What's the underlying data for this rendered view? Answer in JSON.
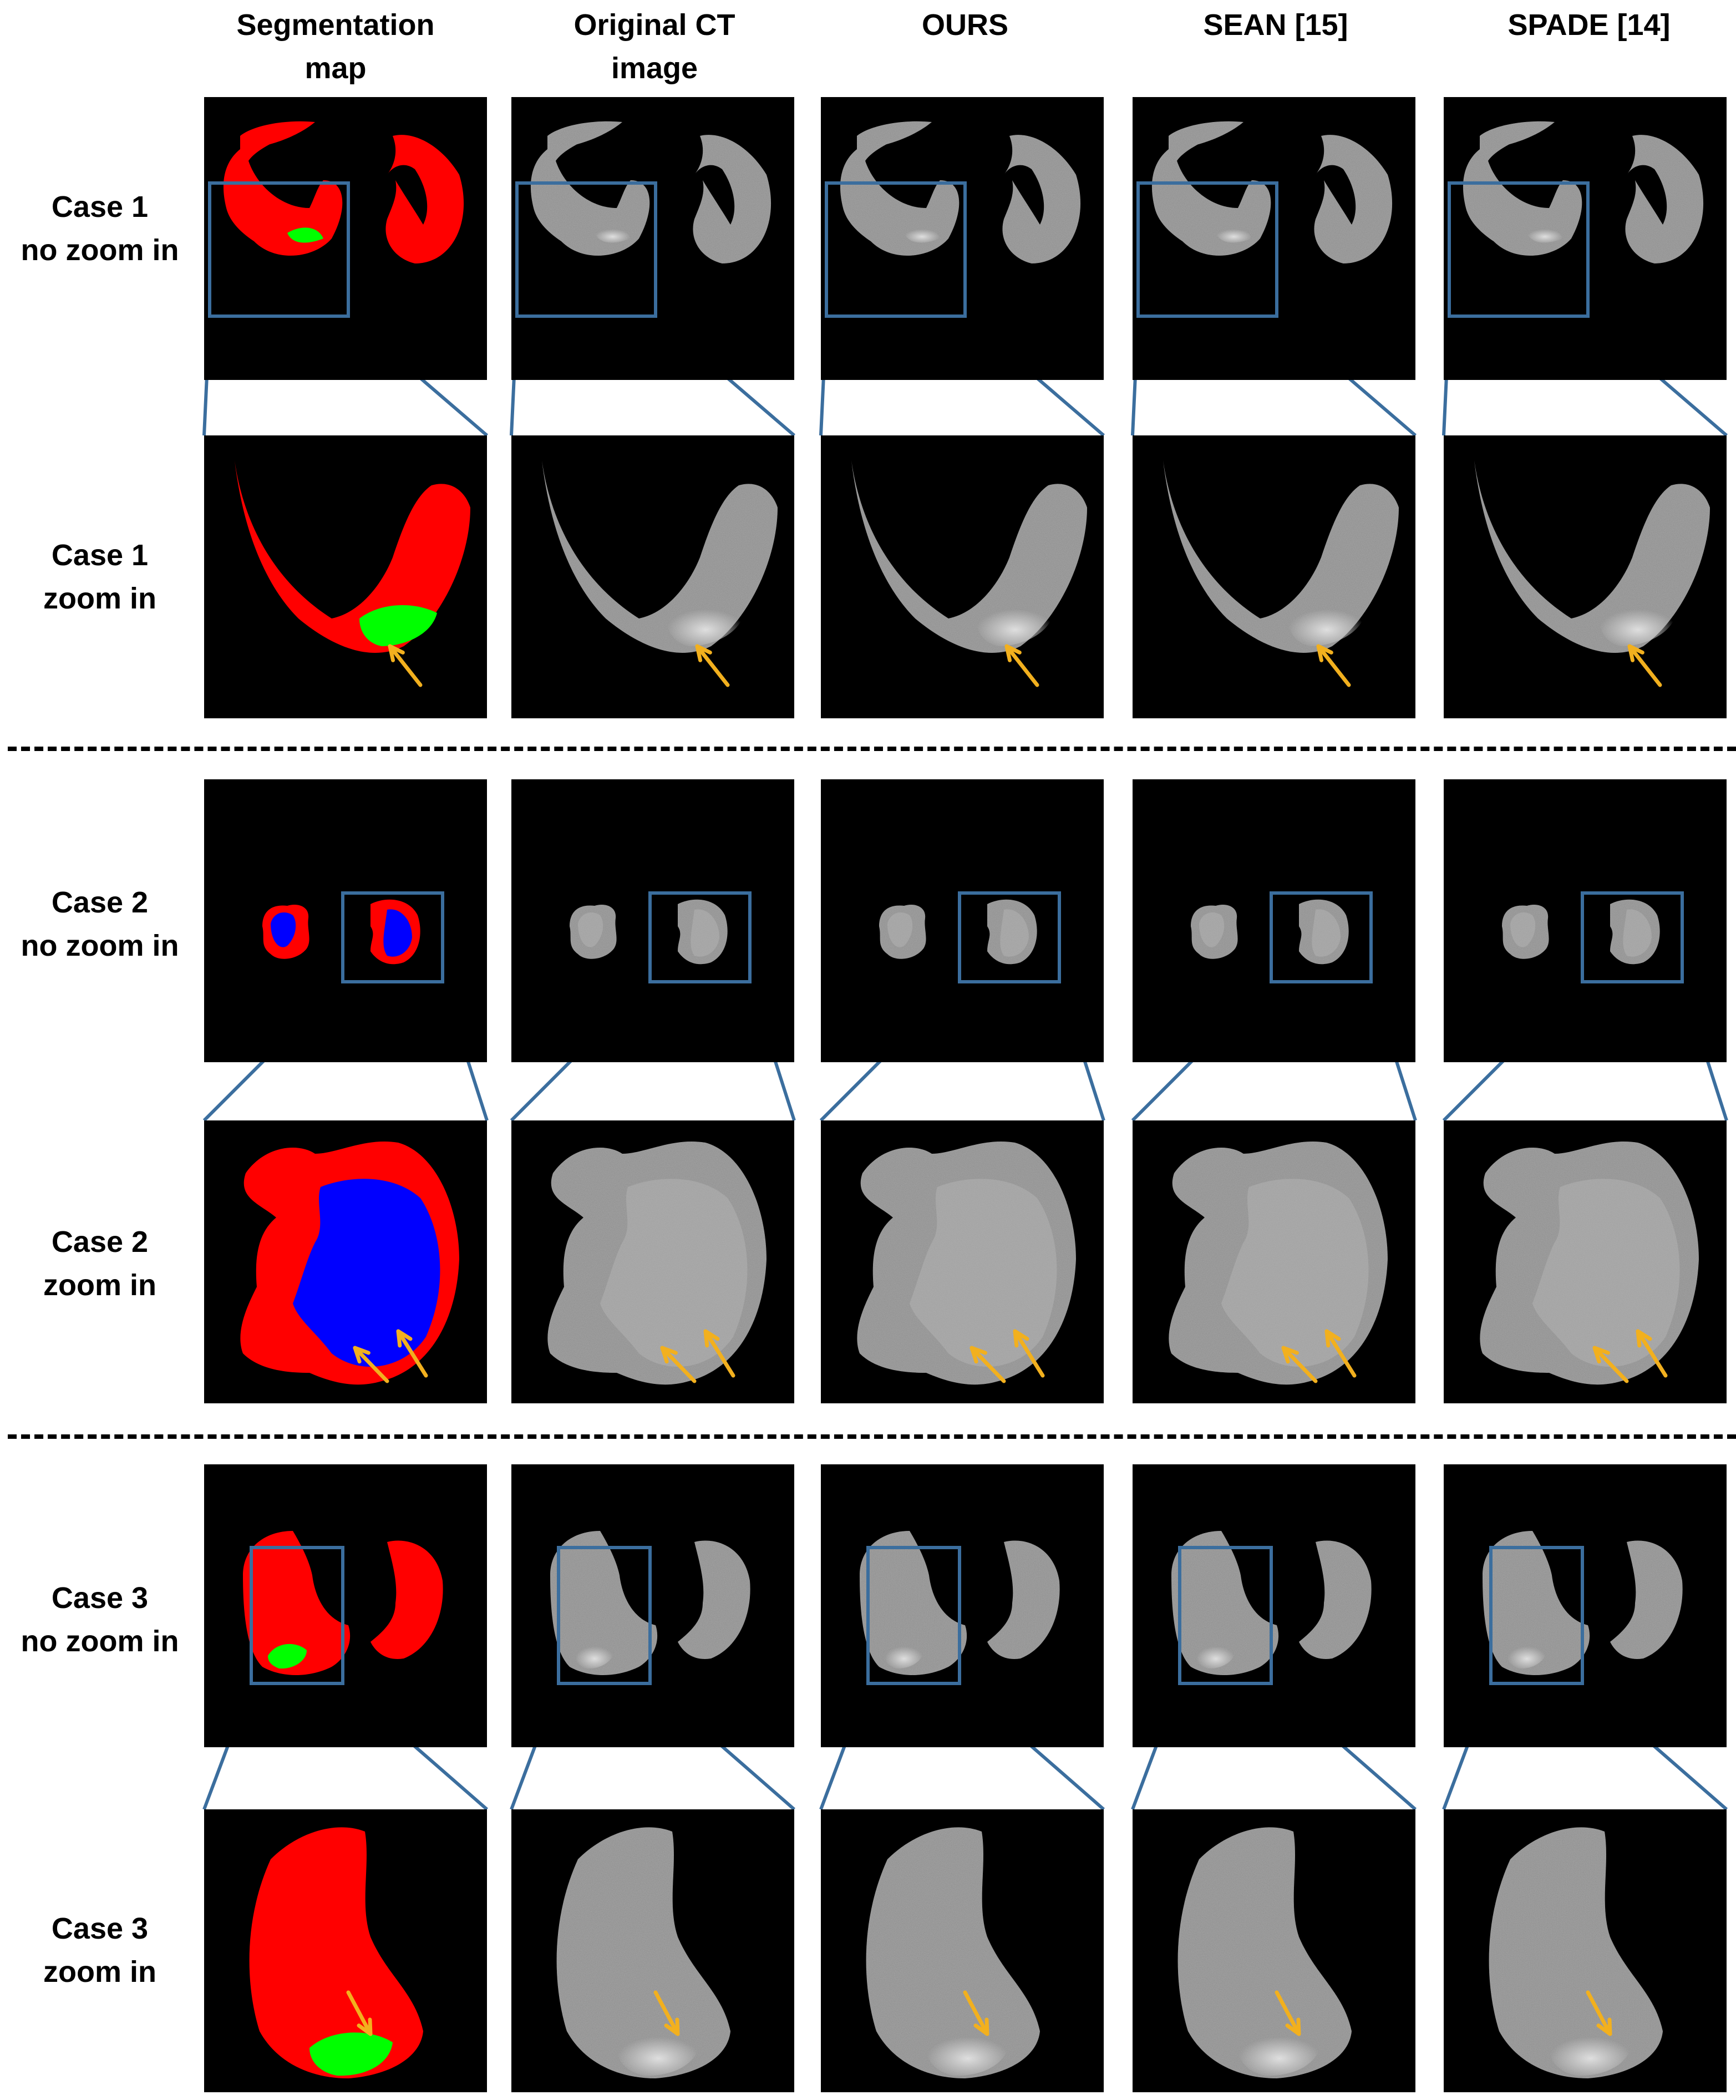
{
  "columns": [
    {
      "key": "seg",
      "title_line1": "Segmentation",
      "title_line2": "map"
    },
    {
      "key": "ct",
      "title_line1": "Original CT",
      "title_line2": "image"
    },
    {
      "key": "ours",
      "title_line1": "OURS",
      "title_line2": ""
    },
    {
      "key": "sean",
      "title_line1": "SEAN [15]",
      "title_line2": ""
    },
    {
      "key": "spade",
      "title_line1": "SPADE [14]",
      "title_line2": ""
    }
  ],
  "rows": [
    {
      "case": "case1",
      "view": "overview",
      "label_line1": "Case 1",
      "label_line2": "no zoom in"
    },
    {
      "case": "case1",
      "view": "zoom",
      "label_line1": "Case 1",
      "label_line2": "zoom in"
    },
    {
      "case": "case2",
      "view": "overview",
      "label_line1": "Case 2",
      "label_line2": "no zoom in"
    },
    {
      "case": "case2",
      "view": "zoom",
      "label_line1": "Case 2",
      "label_line2": "zoom in"
    },
    {
      "case": "case3",
      "view": "overview",
      "label_line1": "Case 3",
      "label_line2": "no zoom in"
    },
    {
      "case": "case3",
      "view": "zoom",
      "label_line1": "Case 3",
      "label_line2": "zoom in"
    }
  ],
  "colors": {
    "segmentation_lung": "#ff0000",
    "segmentation_lesion_green": "#00ff00",
    "segmentation_lesion_blue": "#0000ff",
    "zoom_box": "#3b6e9e",
    "arrow": "#f2b01e",
    "panel_background": "#000000",
    "ct_tissue": "#8a8a8a",
    "ct_lesion": "#e6e6e6"
  }
}
